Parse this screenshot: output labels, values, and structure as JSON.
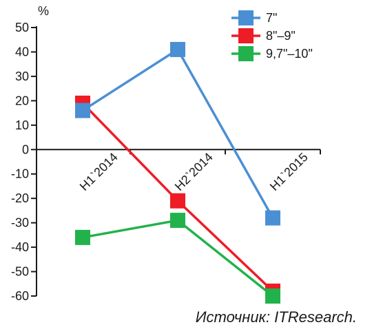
{
  "chart_data": {
    "type": "line",
    "categories": [
      "H1`2014",
      "H2`2014",
      "H1`2015"
    ],
    "y_unit": "%",
    "ylim": [
      -60,
      50
    ],
    "yticks": [
      50,
      40,
      30,
      20,
      10,
      0,
      -10,
      -20,
      -30,
      -40,
      -50,
      -60
    ],
    "grid": false,
    "legend_position": "top-right",
    "series": [
      {
        "name": "7\"",
        "color": "#4a8fd4",
        "values": [
          16,
          41,
          -28
        ]
      },
      {
        "name": "8\"–9\"",
        "color": "#ee1c25",
        "values": [
          19,
          -21,
          -58
        ]
      },
      {
        "name": "9,7\"–10\"",
        "color": "#22b24c",
        "values": [
          -36,
          -29,
          -60
        ]
      }
    ],
    "source": "Источник: ITResearch."
  }
}
